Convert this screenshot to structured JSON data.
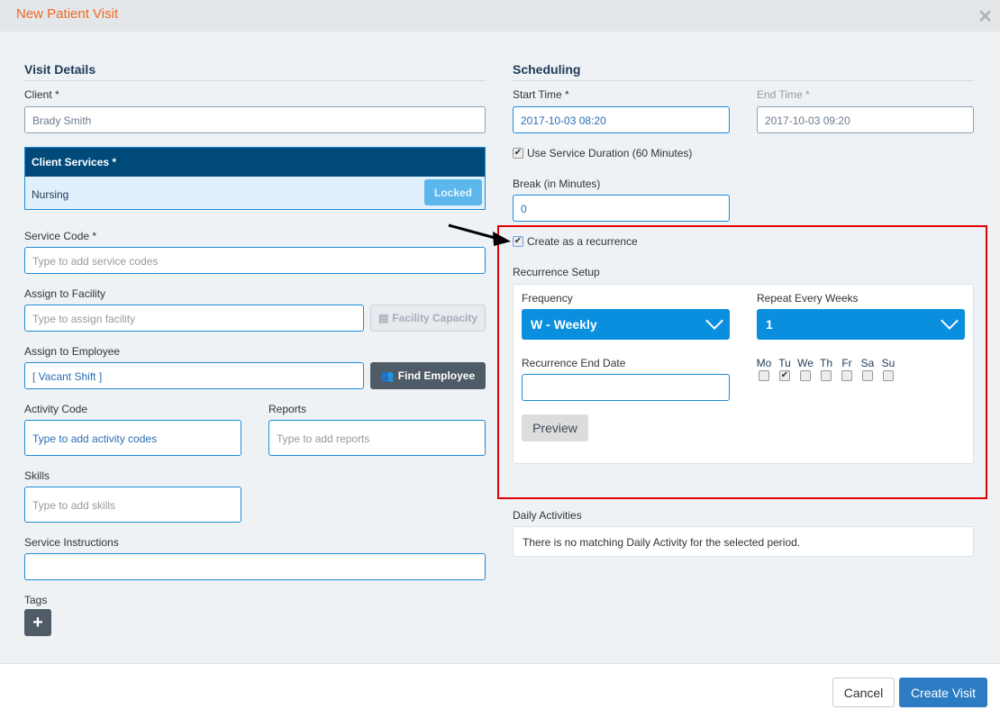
{
  "dialog": {
    "title": "New Patient Visit"
  },
  "visit": {
    "section": "Visit Details",
    "client_label": "Client *",
    "client_value": "Brady Smith",
    "services_header": "Client Services *",
    "service_name": "Nursing",
    "locked_label": "Locked",
    "service_code_label": "Service Code *",
    "service_code_placeholder": "Type to add service codes",
    "facility_label": "Assign to Facility",
    "facility_placeholder": "Type to assign facility",
    "facility_capacity_label": "Facility Capacity",
    "employee_label": "Assign to Employee",
    "employee_value": "[ Vacant Shift ]",
    "find_employee_label": "Find Employee",
    "activity_label": "Activity Code",
    "activity_placeholder": "Type to add activity codes",
    "reports_label": "Reports",
    "reports_placeholder": "Type to add reports",
    "skills_label": "Skills",
    "skills_placeholder": "Type to add skills",
    "instructions_label": "Service Instructions",
    "instructions_value": "",
    "tags_label": "Tags"
  },
  "scheduling": {
    "section": "Scheduling",
    "start_label": "Start Time *",
    "start_value": "2017-10-03 08:20",
    "end_label": "End Time *",
    "end_value": "2017-10-03 09:20",
    "use_duration_label": "Use Service Duration (60 Minutes)",
    "use_duration_checked": true,
    "break_label": "Break (in Minutes)",
    "break_value": "0",
    "recurrence_label": "Create as a recurrence",
    "recurrence_checked": true,
    "setup_label": "Recurrence Setup",
    "frequency_label": "Frequency",
    "frequency_value": "W - Weekly",
    "repeat_label": "Repeat Every Weeks",
    "repeat_value": "1",
    "end_date_label": "Recurrence End Date",
    "end_date_value": "",
    "days": [
      {
        "label": "Mo",
        "checked": false
      },
      {
        "label": "Tu",
        "checked": true
      },
      {
        "label": "We",
        "checked": false
      },
      {
        "label": "Th",
        "checked": false
      },
      {
        "label": "Fr",
        "checked": false
      },
      {
        "label": "Sa",
        "checked": false
      },
      {
        "label": "Su",
        "checked": false
      }
    ],
    "preview_label": "Preview",
    "daily_label": "Daily Activities",
    "daily_message": "There is no matching Daily Activity for the selected period."
  },
  "footer": {
    "cancel_label": "Cancel",
    "create_label": "Create Visit"
  },
  "colors": {
    "accent": "#0a8fde",
    "title": "#f26722",
    "highlight": "#e00000",
    "header": "#004a7a"
  }
}
